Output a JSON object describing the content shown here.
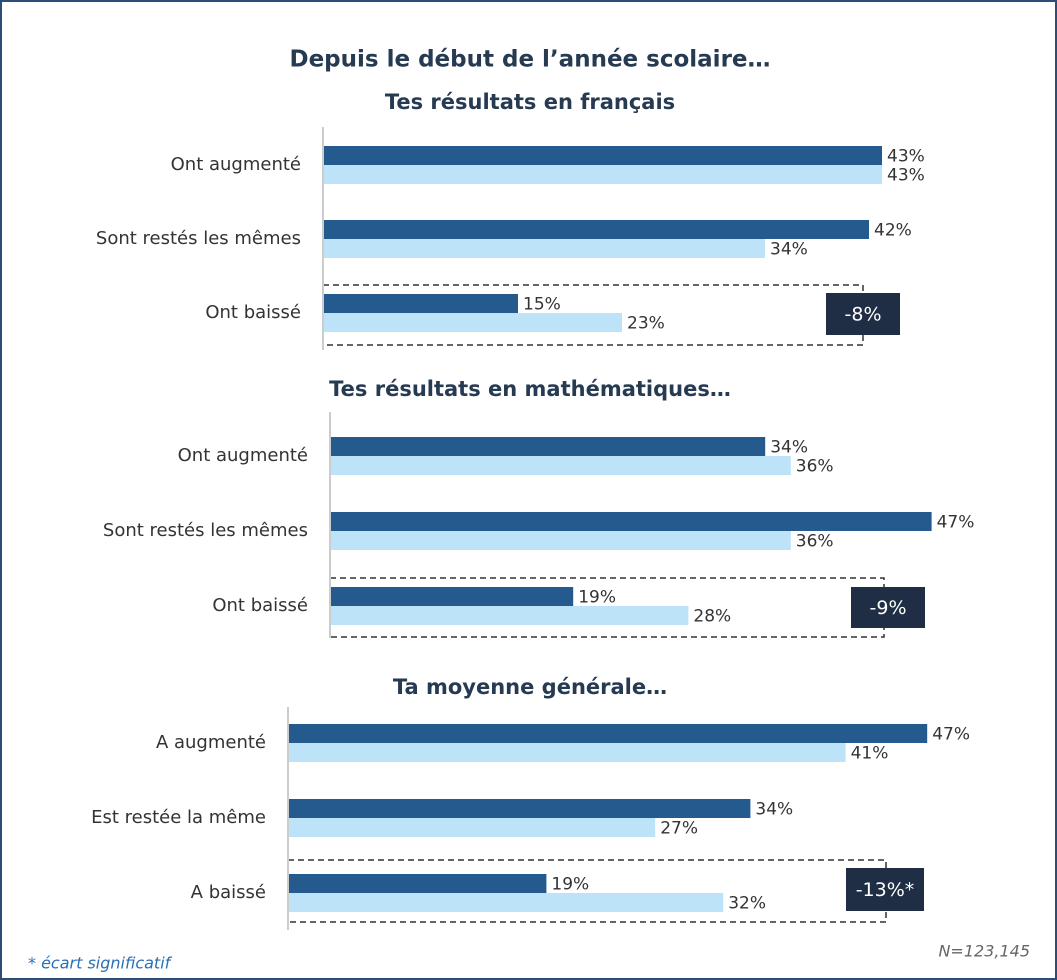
{
  "title": "Depuis le début de l’année scolaire…",
  "footnote": "* écart significatif",
  "sample_note": "N=123,145",
  "chart_data": [
    {
      "type": "bar",
      "orientation": "horizontal",
      "title": "Tes résultats en français",
      "categories": [
        "Ont augmenté",
        "Sont restés les mêmes",
        "Ont baissé"
      ],
      "xlim": [
        0,
        50
      ],
      "series": [
        {
          "color": "#245a8d",
          "values": [
            43,
            42,
            15
          ],
          "value_labels": [
            "43%",
            "42%",
            "15%"
          ]
        },
        {
          "color": "#bde3f8",
          "values": [
            43,
            34,
            23
          ],
          "value_labels": [
            "43%",
            "34%",
            "23%"
          ]
        }
      ],
      "annotation": {
        "value": -8,
        "label": "-8%"
      }
    },
    {
      "type": "bar",
      "orientation": "horizontal",
      "title": "Tes résultats en mathématiques…",
      "categories": [
        "Ont augmenté",
        "Sont restés les mêmes",
        "Ont baissé"
      ],
      "xlim": [
        0,
        50
      ],
      "series": [
        {
          "color": "#245a8d",
          "values": [
            34,
            47,
            19
          ],
          "value_labels": [
            "34%",
            "47%",
            "19%"
          ]
        },
        {
          "color": "#bde3f8",
          "values": [
            36,
            36,
            28
          ],
          "value_labels": [
            "36%",
            "36%",
            "28%"
          ]
        }
      ],
      "annotation": {
        "value": -9,
        "label": "-9%"
      }
    },
    {
      "type": "bar",
      "orientation": "horizontal",
      "title": "Ta moyenne générale…",
      "categories": [
        "A augmenté",
        "Est restée la même",
        "A baissé"
      ],
      "xlim": [
        0,
        50
      ],
      "series": [
        {
          "color": "#245a8d",
          "values": [
            47,
            34,
            19
          ],
          "value_labels": [
            "47%",
            "34%",
            "19%"
          ]
        },
        {
          "color": "#bde3f8",
          "values": [
            41,
            27,
            32
          ],
          "value_labels": [
            "41%",
            "27%",
            "32%"
          ]
        }
      ],
      "annotation": {
        "value": -13,
        "label": "-13%*"
      }
    }
  ]
}
